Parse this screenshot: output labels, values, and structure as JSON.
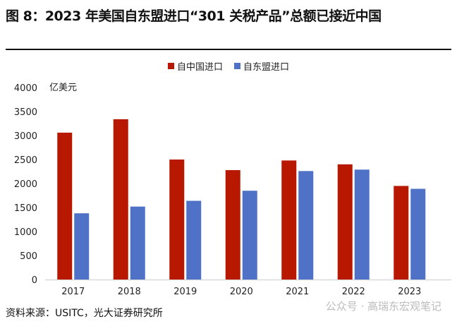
{
  "title": "图 8：2023 年美国自东盟进口“301 关税产品”总额已接近中国",
  "source": "资料来源：USITC，光大证券研究所",
  "watermark": "公众号 · 高瑞东宏观笔记",
  "chart_data": {
    "type": "bar",
    "title": "",
    "ylabel": "亿美元",
    "xlabel": "",
    "ylim": [
      0,
      4000
    ],
    "yticks": [
      0,
      500,
      1000,
      1500,
      2000,
      2500,
      3000,
      3500,
      4000
    ],
    "categories": [
      "2017",
      "2018",
      "2019",
      "2020",
      "2021",
      "2022",
      "2023"
    ],
    "legend_position": "top",
    "grid": false,
    "series": [
      {
        "name": "自中国进口",
        "color": "#B81800",
        "values": [
          3060,
          3340,
          2500,
          2280,
          2480,
          2400,
          1950
        ]
      },
      {
        "name": "自东盟进口",
        "color": "#4F72C6",
        "values": [
          1380,
          1520,
          1640,
          1850,
          2260,
          2290,
          1890
        ]
      }
    ]
  }
}
